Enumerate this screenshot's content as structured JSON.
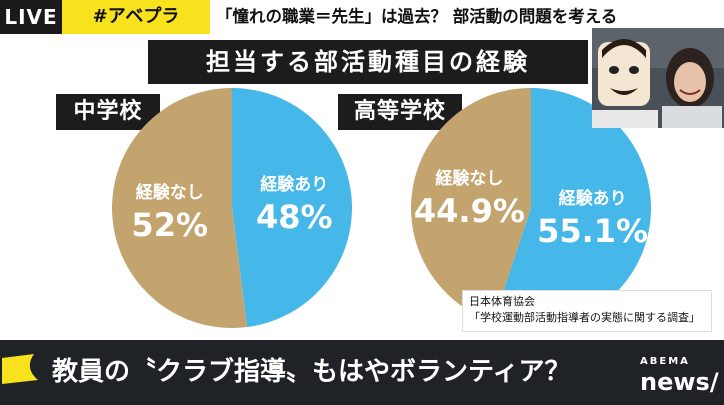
{
  "ticker": {
    "live": "LIVE",
    "hashtag": "#アベプラ",
    "headline": "「憧れの職業＝先生」は過去？ 部活動の問題を考える"
  },
  "colors": {
    "experienced": "#45b7e8",
    "not_experienced": "#c4a46e",
    "accent_yellow": "#f8e21e"
  },
  "chart_data": {
    "type": "pie",
    "title": "担当する部活動種目の経験",
    "charts": [
      {
        "name": "中学校",
        "slices": [
          {
            "label": "経験あり",
            "value": 48,
            "value_label": "48%",
            "color": "#45b7e8"
          },
          {
            "label": "経験なし",
            "value": 52,
            "value_label": "52%",
            "color": "#c4a46e"
          }
        ]
      },
      {
        "name": "高等学校",
        "slices": [
          {
            "label": "経験あり",
            "value": 55.1,
            "value_label": "55.1%",
            "color": "#45b7e8"
          },
          {
            "label": "経験なし",
            "value": 44.9,
            "value_label": "44.9%",
            "color": "#c4a46e"
          }
        ]
      }
    ],
    "source": {
      "org": "日本体育協会",
      "report": "「学校運動部活動指導者の実態に関する調査」"
    }
  },
  "caption": {
    "text": "教員の〝クラブ指導〟もはやボランティア？"
  },
  "brand": {
    "top": "ABEMA",
    "bottom": "news/"
  }
}
